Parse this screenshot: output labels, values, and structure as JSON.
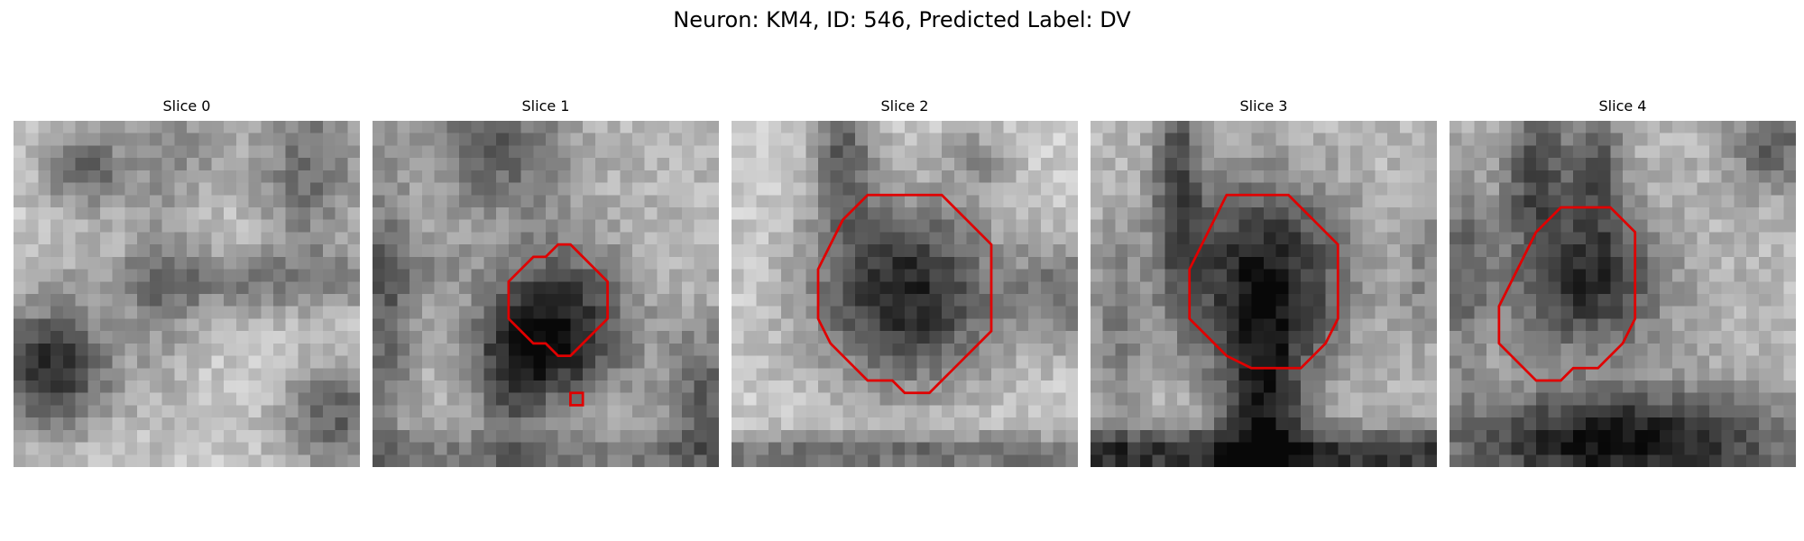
{
  "figure": {
    "title": "Neuron: KM4, ID: 546, Predicted Label: DV"
  },
  "contour_color": "#e00000",
  "panels": [
    {
      "title": "Slice 0",
      "contours": []
    },
    {
      "title": "Slice 1",
      "contours": [
        [
          [
            14,
            11
          ],
          [
            15,
            10
          ],
          [
            16,
            10
          ],
          [
            17,
            11
          ],
          [
            18,
            12
          ],
          [
            19,
            13
          ],
          [
            19,
            16
          ],
          [
            18,
            17
          ],
          [
            17,
            18
          ],
          [
            16,
            19
          ],
          [
            15,
            19
          ],
          [
            14,
            18
          ],
          [
            13,
            18
          ],
          [
            12,
            17
          ],
          [
            11,
            16
          ],
          [
            11,
            13
          ],
          [
            12,
            12
          ],
          [
            13,
            11
          ]
        ],
        [
          [
            16,
            22
          ],
          [
            17,
            22
          ],
          [
            17,
            23
          ],
          [
            16,
            23
          ]
        ]
      ]
    },
    {
      "title": "Slice 2",
      "contours": [
        [
          [
            13,
            6
          ],
          [
            17,
            6
          ],
          [
            18,
            7
          ],
          [
            19,
            8
          ],
          [
            20,
            9
          ],
          [
            21,
            10
          ],
          [
            21,
            14
          ],
          [
            21,
            17
          ],
          [
            20,
            18
          ],
          [
            19,
            19
          ],
          [
            18,
            20
          ],
          [
            17,
            21
          ],
          [
            16,
            22
          ],
          [
            14,
            22
          ],
          [
            13,
            21
          ],
          [
            11,
            21
          ],
          [
            10,
            20
          ],
          [
            9,
            19
          ],
          [
            8,
            18
          ],
          [
            7,
            16
          ],
          [
            7,
            12
          ],
          [
            8,
            10
          ],
          [
            9,
            8
          ],
          [
            10,
            7
          ],
          [
            11,
            6
          ]
        ]
      ]
    },
    {
      "title": "Slice 3",
      "contours": [
        [
          [
            11,
            6
          ],
          [
            16,
            6
          ],
          [
            17,
            7
          ],
          [
            18,
            8
          ],
          [
            19,
            9
          ],
          [
            20,
            10
          ],
          [
            20,
            14
          ],
          [
            20,
            16
          ],
          [
            19,
            18
          ],
          [
            18,
            19
          ],
          [
            17,
            20
          ],
          [
            13,
            20
          ],
          [
            11,
            19
          ],
          [
            10,
            18
          ],
          [
            9,
            17
          ],
          [
            8,
            16
          ],
          [
            8,
            12
          ],
          [
            9,
            10
          ],
          [
            10,
            8
          ]
        ]
      ]
    },
    {
      "title": "Slice 4",
      "contours": [
        [
          [
            9,
            7
          ],
          [
            13,
            7
          ],
          [
            14,
            8
          ],
          [
            15,
            9
          ],
          [
            15,
            12
          ],
          [
            15,
            16
          ],
          [
            14,
            18
          ],
          [
            13,
            19
          ],
          [
            12,
            20
          ],
          [
            10,
            20
          ],
          [
            9,
            21
          ],
          [
            7,
            21
          ],
          [
            6,
            20
          ],
          [
            5,
            19
          ],
          [
            4,
            18
          ],
          [
            4,
            15
          ],
          [
            5,
            13
          ],
          [
            6,
            11
          ],
          [
            7,
            9
          ]
        ]
      ]
    }
  ]
}
